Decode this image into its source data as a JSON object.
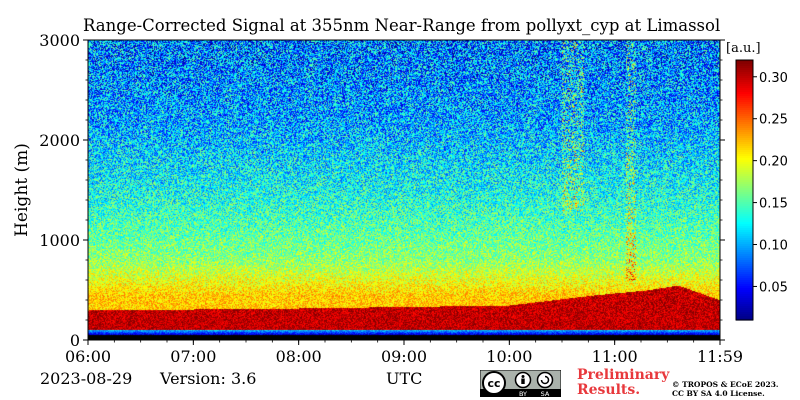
{
  "chart_data": {
    "type": "heatmap",
    "title": "Range-Corrected Signal at 355nm Near-Range from pollyxt_cyp at Limassol",
    "xlabel": "UTC",
    "ylabel": "Height (m)",
    "x_range_hours": [
      6.0,
      12.0
    ],
    "x_ticks": [
      {
        "value": 6,
        "label": "06:00"
      },
      {
        "value": 7,
        "label": "07:00"
      },
      {
        "value": 8,
        "label": "08:00"
      },
      {
        "value": 9,
        "label": "09:00"
      },
      {
        "value": 10,
        "label": "10:00"
      },
      {
        "value": 11,
        "label": "11:00"
      },
      {
        "value": 12,
        "label": "11:59"
      }
    ],
    "ylim": [
      0,
      3000
    ],
    "y_ticks": [
      {
        "value": 0,
        "label": "0"
      },
      {
        "value": 1000,
        "label": "1000"
      },
      {
        "value": 2000,
        "label": "2000"
      },
      {
        "value": 3000,
        "label": "3000"
      }
    ],
    "colorbar": {
      "label": "[a.u.]",
      "range": [
        0.01,
        0.32
      ],
      "colormap": "jet",
      "ticks": [
        {
          "value": 0.05,
          "label": "0.05"
        },
        {
          "value": 0.1,
          "label": "0.10"
        },
        {
          "value": 0.15,
          "label": "0.15"
        },
        {
          "value": 0.2,
          "label": "0.20"
        },
        {
          "value": 0.25,
          "label": "0.25"
        },
        {
          "value": 0.3,
          "label": "0.30"
        }
      ]
    },
    "signal_profile": [
      {
        "height": 0,
        "value": 0.0
      },
      {
        "height": 60,
        "value": 0.0
      },
      {
        "height": 100,
        "value": 0.08
      },
      {
        "height": 130,
        "value": 0.3
      },
      {
        "height": 300,
        "value": 0.3
      },
      {
        "height": 450,
        "value": 0.22
      },
      {
        "height": 800,
        "value": 0.17
      },
      {
        "height": 1500,
        "value": 0.13
      },
      {
        "height": 2200,
        "value": 0.1
      },
      {
        "height": 3000,
        "value": 0.085
      }
    ],
    "boundary_layer_top": [
      {
        "time": 6.0,
        "height": 400
      },
      {
        "time": 8.0,
        "height": 420
      },
      {
        "time": 10.0,
        "height": 450
      },
      {
        "time": 10.8,
        "height": 550
      },
      {
        "time": 11.3,
        "height": 600
      },
      {
        "time": 11.6,
        "height": 650
      },
      {
        "time": 12.0,
        "height": 500
      }
    ],
    "annotations": [
      {
        "label": "cloud streak",
        "time_start": 10.5,
        "time_end": 10.7,
        "height_bottom": 1300,
        "height_top": 3000
      },
      {
        "label": "cloud streak",
        "time_start": 11.1,
        "time_end": 11.2,
        "height_bottom": 600,
        "height_top": 3000
      }
    ]
  },
  "footer": {
    "date": "2023-08-29",
    "version": "Version: 3.6",
    "preliminary": [
      "Preliminary",
      "Results."
    ],
    "copyright": [
      "© TROPOS & ECoE 2023.",
      "CC BY SA 4.0 License."
    ],
    "license_badge": {
      "text": "cc",
      "icons": [
        "cc-icon",
        "by-icon",
        "sa-icon"
      ],
      "labels": [
        "BY",
        "SA"
      ]
    }
  },
  "colors": {
    "accent_red": "#e8383c",
    "axis": "#000000"
  }
}
